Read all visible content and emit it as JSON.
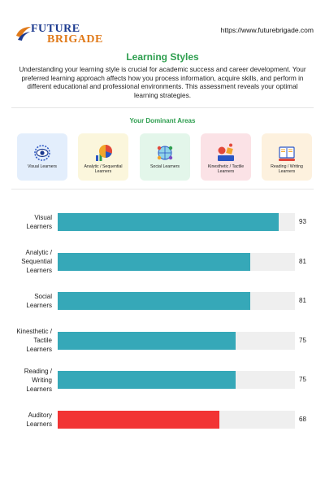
{
  "header": {
    "logo_line1": "FUTURE",
    "logo_line2": "BRIGADE",
    "url": "https://www.futurebrigade.com"
  },
  "title": "Learning Styles",
  "intro": "Understanding your learning style is crucial for academic success and career development. Your preferred learning approach affects how you process information, acquire skills, and perform in different educational and professional environments. This assessment reveals your optimal learning strategies.",
  "dominant_areas": {
    "heading": "Your Dominant Areas",
    "cards": [
      {
        "label": "Visual Learners",
        "bg": "#e3eefc",
        "icon": "eye-icon"
      },
      {
        "label": "Analytic / Sequential Learners",
        "bg": "#fbf6dc",
        "icon": "pie-chart-icon"
      },
      {
        "label": "Social Learners",
        "bg": "#e3f6ea",
        "icon": "people-globe-icon"
      },
      {
        "label": "Kinesthetic / Tactile Learners",
        "bg": "#fbe2e6",
        "icon": "hands-on-icon"
      },
      {
        "label": "Reading / Writing Learners",
        "bg": "#fdf1de",
        "icon": "book-reader-icon"
      }
    ]
  },
  "chart_data": {
    "type": "bar",
    "orientation": "horizontal",
    "categories": [
      "Visual Learners",
      "Analytic / Sequential Learners",
      "Social Learners",
      "Kinesthetic / Tactile Learners",
      "Reading / Writing Learners",
      "Auditory Learners"
    ],
    "values": [
      93,
      81,
      81,
      75,
      75,
      68
    ],
    "xlim": [
      0,
      100
    ],
    "colors": [
      "#36a8b8",
      "#36a8b8",
      "#36a8b8",
      "#36a8b8",
      "#36a8b8",
      "#f23434"
    ],
    "track_color": "#efefef",
    "grid": false
  }
}
